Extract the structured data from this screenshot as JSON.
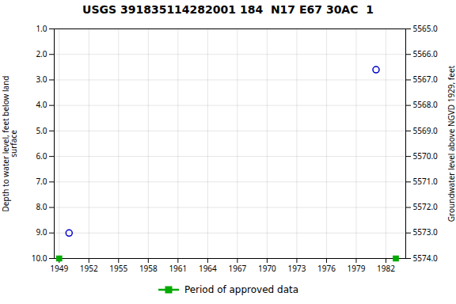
{
  "chart_data": {
    "type": "scatter",
    "title": "USGS 391835114282001 184  N17 E67 30AC  1",
    "y_label": "Depth to water level, feet below land\nsurface",
    "y2_label": "Groundwater level above NGVD 1929, feet",
    "xlim": [
      1948.5,
      1984.0
    ],
    "xticks": [
      1949,
      1952,
      1955,
      1958,
      1961,
      1964,
      1967,
      1970,
      1973,
      1976,
      1979,
      1982
    ],
    "ylim": [
      10.0,
      1.0
    ],
    "yticks": [
      {
        "value": 1.0,
        "label": "1.0"
      },
      {
        "value": 2.0,
        "label": "2.0"
      },
      {
        "value": 3.0,
        "label": "3.0"
      },
      {
        "value": 4.0,
        "label": "4.0"
      },
      {
        "value": 5.0,
        "label": "5.0"
      },
      {
        "value": 6.0,
        "label": "6.0"
      },
      {
        "value": 7.0,
        "label": "7.0"
      },
      {
        "value": 8.0,
        "label": "8.0"
      },
      {
        "value": 9.0,
        "label": "9.0"
      },
      {
        "value": 10.0,
        "label": "10.0"
      }
    ],
    "y2lim": [
      5574.0,
      5565.0
    ],
    "y2ticks": [
      {
        "value": 5574.0,
        "label": "5574.0"
      },
      {
        "value": 5573.0,
        "label": "5573.0"
      },
      {
        "value": 5572.0,
        "label": "5572.0"
      },
      {
        "value": 5571.0,
        "label": "5571.0"
      },
      {
        "value": 5570.0,
        "label": "5570.0"
      },
      {
        "value": 5569.0,
        "label": "5569.0"
      },
      {
        "value": 5568.0,
        "label": "5568.0"
      },
      {
        "value": 5567.0,
        "label": "5567.0"
      },
      {
        "value": 5566.0,
        "label": "5566.0"
      },
      {
        "value": 5565.0,
        "label": "5565.0"
      }
    ],
    "grid": true,
    "legend": "bottom",
    "series": [
      {
        "x": [
          1950.0,
          1981.0
        ],
        "values": [
          9.0,
          2.6
        ],
        "color": "#0000cc",
        "marker": "circle_open"
      },
      {
        "name": "Period of approved data",
        "x": [
          1949.0,
          1983.0
        ],
        "values": [
          10.0,
          10.0
        ],
        "color": "#00aa00",
        "marker": "square"
      }
    ]
  }
}
